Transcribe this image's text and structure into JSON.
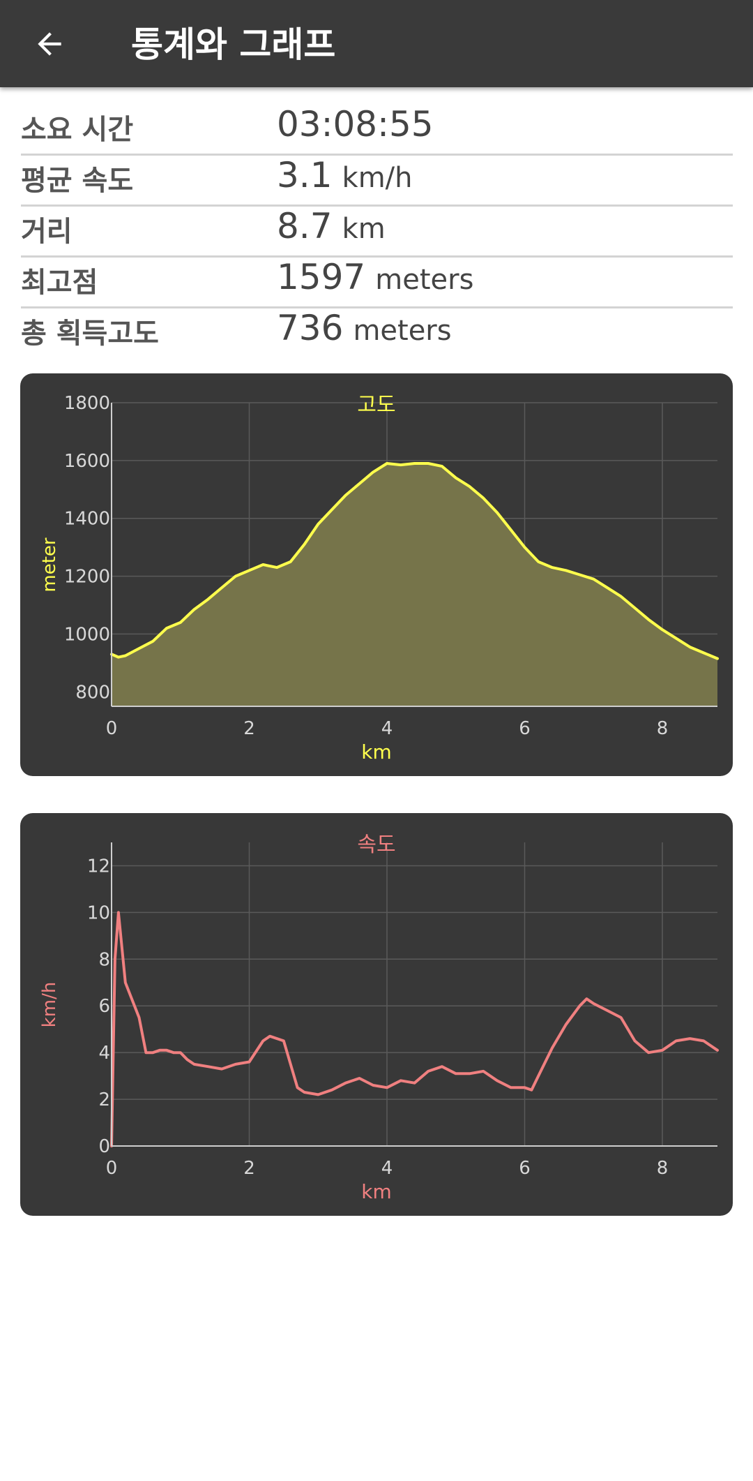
{
  "header": {
    "title": "통계와 그래프"
  },
  "stats": [
    {
      "label": "소요 시간",
      "value": "03:08:55",
      "unit": ""
    },
    {
      "label": "평균 속도",
      "value": "3.1",
      "unit": "km/h"
    },
    {
      "label": "거리",
      "value": "8.7",
      "unit": "km"
    },
    {
      "label": "최고점",
      "value": "1597",
      "unit": "meters"
    },
    {
      "label": "총 획득고도",
      "value": "736",
      "unit": "meters"
    }
  ],
  "chart_data": [
    {
      "type": "area",
      "title": "고도",
      "xlabel": "km",
      "ylabel": "meter",
      "xlim": [
        0,
        8.8
      ],
      "ylim": [
        750,
        1800
      ],
      "xticks": [
        0,
        2,
        4,
        6,
        8
      ],
      "yticks": [
        800,
        1000,
        1200,
        1400,
        1600,
        1800
      ],
      "grid": true,
      "color": "#ffff4d",
      "fill": "#76744a",
      "x": [
        0,
        0.1,
        0.2,
        0.4,
        0.6,
        0.8,
        1.0,
        1.2,
        1.4,
        1.6,
        1.8,
        2.0,
        2.2,
        2.4,
        2.6,
        2.8,
        3.0,
        3.2,
        3.4,
        3.6,
        3.8,
        4.0,
        4.2,
        4.4,
        4.6,
        4.8,
        5.0,
        5.2,
        5.4,
        5.6,
        5.8,
        6.0,
        6.2,
        6.4,
        6.6,
        6.8,
        7.0,
        7.2,
        7.4,
        7.6,
        7.8,
        8.0,
        8.2,
        8.4,
        8.6,
        8.8
      ],
      "y": [
        930,
        920,
        925,
        950,
        975,
        1020,
        1040,
        1085,
        1120,
        1160,
        1200,
        1220,
        1240,
        1230,
        1250,
        1310,
        1380,
        1430,
        1480,
        1520,
        1560,
        1590,
        1585,
        1590,
        1590,
        1580,
        1540,
        1510,
        1470,
        1420,
        1360,
        1300,
        1250,
        1230,
        1220,
        1205,
        1190,
        1160,
        1130,
        1090,
        1050,
        1015,
        985,
        955,
        935,
        915
      ]
    },
    {
      "type": "line",
      "title": "속도",
      "xlabel": "km",
      "ylabel": "km/h",
      "xlim": [
        0,
        8.8
      ],
      "ylim": [
        0,
        13
      ],
      "xticks": [
        0,
        2,
        4,
        6,
        8
      ],
      "yticks": [
        0,
        2,
        4,
        6,
        8,
        10,
        12
      ],
      "grid": true,
      "color": "#f08080",
      "x": [
        0,
        0.05,
        0.1,
        0.2,
        0.4,
        0.5,
        0.6,
        0.7,
        0.8,
        0.9,
        1.0,
        1.1,
        1.2,
        1.4,
        1.6,
        1.8,
        2.0,
        2.2,
        2.3,
        2.5,
        2.7,
        2.8,
        3.0,
        3.2,
        3.4,
        3.6,
        3.8,
        4.0,
        4.2,
        4.4,
        4.6,
        4.8,
        5.0,
        5.2,
        5.4,
        5.6,
        5.8,
        6.0,
        6.1,
        6.2,
        6.4,
        6.6,
        6.8,
        6.9,
        7.0,
        7.2,
        7.4,
        7.6,
        7.8,
        8.0,
        8.2,
        8.4,
        8.6,
        8.8
      ],
      "y": [
        0,
        8,
        10,
        7,
        5.5,
        4.0,
        4.0,
        4.1,
        4.1,
        4.0,
        4.0,
        3.7,
        3.5,
        3.4,
        3.3,
        3.5,
        3.6,
        4.5,
        4.7,
        4.5,
        2.5,
        2.3,
        2.2,
        2.4,
        2.7,
        2.9,
        2.6,
        2.5,
        2.8,
        2.7,
        3.2,
        3.4,
        3.1,
        3.1,
        3.2,
        2.8,
        2.5,
        2.5,
        2.4,
        3.0,
        4.2,
        5.2,
        6.0,
        6.3,
        6.1,
        5.8,
        5.5,
        4.5,
        4.0,
        4.1,
        4.5,
        4.6,
        4.5,
        4.1
      ]
    }
  ]
}
